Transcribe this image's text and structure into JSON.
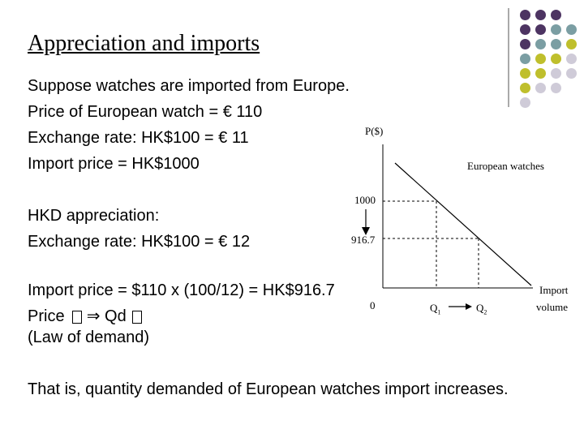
{
  "slide": {
    "title": "Appreciation and imports",
    "lines": [
      "Suppose watches are imported from Europe.",
      "Price of European watch = € 110",
      "Exchange rate: HK$100 = € 11",
      "Import price = HK$1000",
      "HKD appreciation:",
      "Exchange rate: HK$100 = € 12",
      "Import price = $110 x (100/12) = HK$916.7",
      "Price",
      "Qd",
      "(Law of demand)",
      "That is, quantity demanded of European watches import increases."
    ]
  },
  "graph": {
    "y_axis_label": "P($)",
    "curve_label": "European watches",
    "price_high": "1000",
    "price_low": "916.7",
    "origin": "0",
    "q1": "Q",
    "q1_sub": "1",
    "q2": "Q",
    "q2_sub": "2",
    "x_axis_label_line1": "Import",
    "x_axis_label_line2": "volume"
  },
  "decor": {
    "colors": {
      "purple": "#4d3462",
      "teal": "#7b9ea3",
      "olive": "#bfbf2c",
      "lavender": "#cfcbd8"
    }
  }
}
